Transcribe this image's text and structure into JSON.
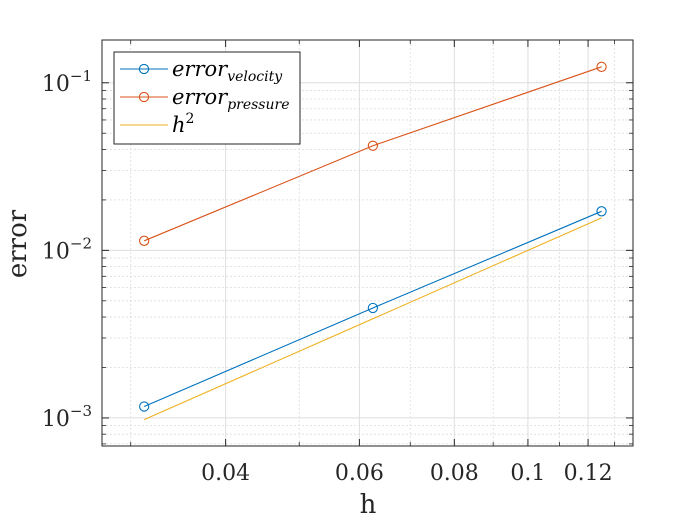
{
  "chart_data": {
    "type": "line",
    "title": "",
    "xlabel": "h",
    "ylabel": "error",
    "xscale": "log",
    "yscale": "log",
    "xlim": [
      0.0275,
      0.1375
    ],
    "ylim": [
      0.00068,
      0.18
    ],
    "grid": true,
    "minor_grid": true,
    "legend_loc": "top-left",
    "x_ticks": [
      0.04,
      0.06,
      0.08,
      0.1,
      0.12
    ],
    "x_tick_labels": [
      "0.04",
      "0.06",
      "0.08",
      "0.1",
      "0.12"
    ],
    "y_ticks": [
      0.001,
      0.01,
      0.1
    ],
    "y_tick_labels": [
      {
        "base": "10",
        "exp": "−3"
      },
      {
        "base": "10",
        "exp": "−2"
      },
      {
        "base": "10",
        "exp": "−1"
      }
    ],
    "series": [
      {
        "name": "error_velocity",
        "legend_main": "error",
        "legend_sub": "velocity",
        "color": "#0072BD",
        "marker": "circle",
        "x": [
          0.03125,
          0.0625,
          0.125
        ],
        "y": [
          0.00117,
          0.00453,
          0.0171
        ]
      },
      {
        "name": "error_pressure",
        "legend_main": "error",
        "legend_sub": "pressure",
        "color": "#D95319",
        "marker": "circle",
        "x": [
          0.03125,
          0.0625,
          0.125
        ],
        "y": [
          0.0114,
          0.0421,
          0.1245
        ]
      },
      {
        "name": "h^2",
        "legend_main": "h",
        "legend_sup": "2",
        "color": "#EDB120",
        "marker": "none",
        "x": [
          0.03125,
          0.125
        ],
        "y": [
          0.000977,
          0.015625
        ]
      }
    ]
  }
}
